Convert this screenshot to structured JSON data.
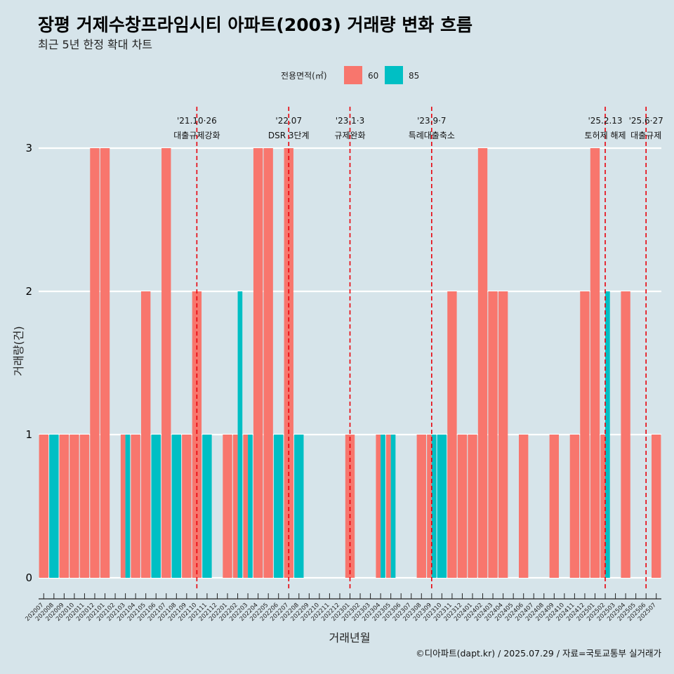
{
  "title": "장평 거제수창프라임시티 아파트(2003) 거래량 변화 흐름",
  "subtitle": "최근 5년 한정 확대 차트",
  "caption": "©디아파트(dapt.kr) / 2025.07.29 / 자료=국토교통부 실거래가",
  "colors": {
    "background": "#d6e4ea",
    "series_60": "#f8766d",
    "series_85": "#00bfc4",
    "event_line": "#e8000b",
    "grid": "#ffffff"
  },
  "chart_data": {
    "type": "bar",
    "title": "장평 거제수창프라임시티 아파트(2003) 거래량 변화 흐름",
    "subtitle": "최근 5년 한정 확대 차트",
    "xlabel": "거래년월",
    "ylabel": "거래량(건)",
    "ylim": [
      0,
      3
    ],
    "yticks": [
      0,
      1,
      2,
      3
    ],
    "grid": true,
    "legend": {
      "title": "전용면적(㎡)",
      "position": "top"
    },
    "categories": [
      "202007",
      "202008",
      "202009",
      "202010",
      "202011",
      "202012",
      "202101",
      "202102",
      "202103",
      "202104",
      "202105",
      "202106",
      "202107",
      "202108",
      "202109",
      "202110",
      "202111",
      "202112",
      "202201",
      "202202",
      "202203",
      "202204",
      "202205",
      "202206",
      "202207",
      "202208",
      "202209",
      "202210",
      "202211",
      "202212",
      "202301",
      "202302",
      "202303",
      "202304",
      "202305",
      "202306",
      "202307",
      "202308",
      "202309",
      "202310",
      "202311",
      "202312",
      "202401",
      "202402",
      "202403",
      "202404",
      "202405",
      "202406",
      "202407",
      "202408",
      "202409",
      "202410",
      "202411",
      "202412",
      "202501",
      "202502",
      "202503",
      "202504",
      "202505",
      "202506",
      "202507"
    ],
    "series": [
      {
        "name": "60",
        "color": "#f8766d",
        "values": [
          1,
          0,
          1,
          1,
          1,
          3,
          3,
          0,
          1,
          1,
          2,
          0,
          3,
          0,
          1,
          2,
          0,
          0,
          1,
          1,
          1,
          3,
          3,
          0,
          3,
          0,
          0,
          0,
          0,
          0,
          1,
          0,
          0,
          1,
          1,
          0,
          0,
          1,
          1,
          0,
          2,
          1,
          1,
          3,
          2,
          2,
          0,
          1,
          0,
          0,
          1,
          0,
          1,
          2,
          3,
          1,
          0,
          2,
          0,
          0,
          1
        ]
      },
      {
        "name": "85",
        "color": "#00bfc4",
        "values": [
          0,
          1,
          0,
          0,
          0,
          0,
          0,
          0,
          1,
          0,
          0,
          1,
          0,
          1,
          0,
          0,
          1,
          0,
          0,
          2,
          1,
          0,
          0,
          1,
          0,
          1,
          0,
          0,
          0,
          0,
          0,
          0,
          0,
          1,
          1,
          0,
          0,
          0,
          1,
          1,
          0,
          0,
          0,
          0,
          0,
          0,
          0,
          0,
          0,
          0,
          0,
          0,
          0,
          0,
          0,
          2,
          0,
          0,
          0,
          0,
          0
        ]
      }
    ],
    "events": [
      {
        "date": "'21.10·26",
        "label": "대출규제강화",
        "category": "202110"
      },
      {
        "date": "'22.07",
        "label": "DSR 3단계",
        "category": "202207"
      },
      {
        "date": "'23.1·3",
        "label": "규제완화",
        "category": "202301"
      },
      {
        "date": "'23.9·7",
        "label": "특례대출축소",
        "category": "202309"
      },
      {
        "date": "'25.2.13",
        "label": "토허제 해제",
        "category": "202502"
      },
      {
        "date": "'25.6·27",
        "label": "대출규제",
        "category": "202506"
      }
    ]
  }
}
